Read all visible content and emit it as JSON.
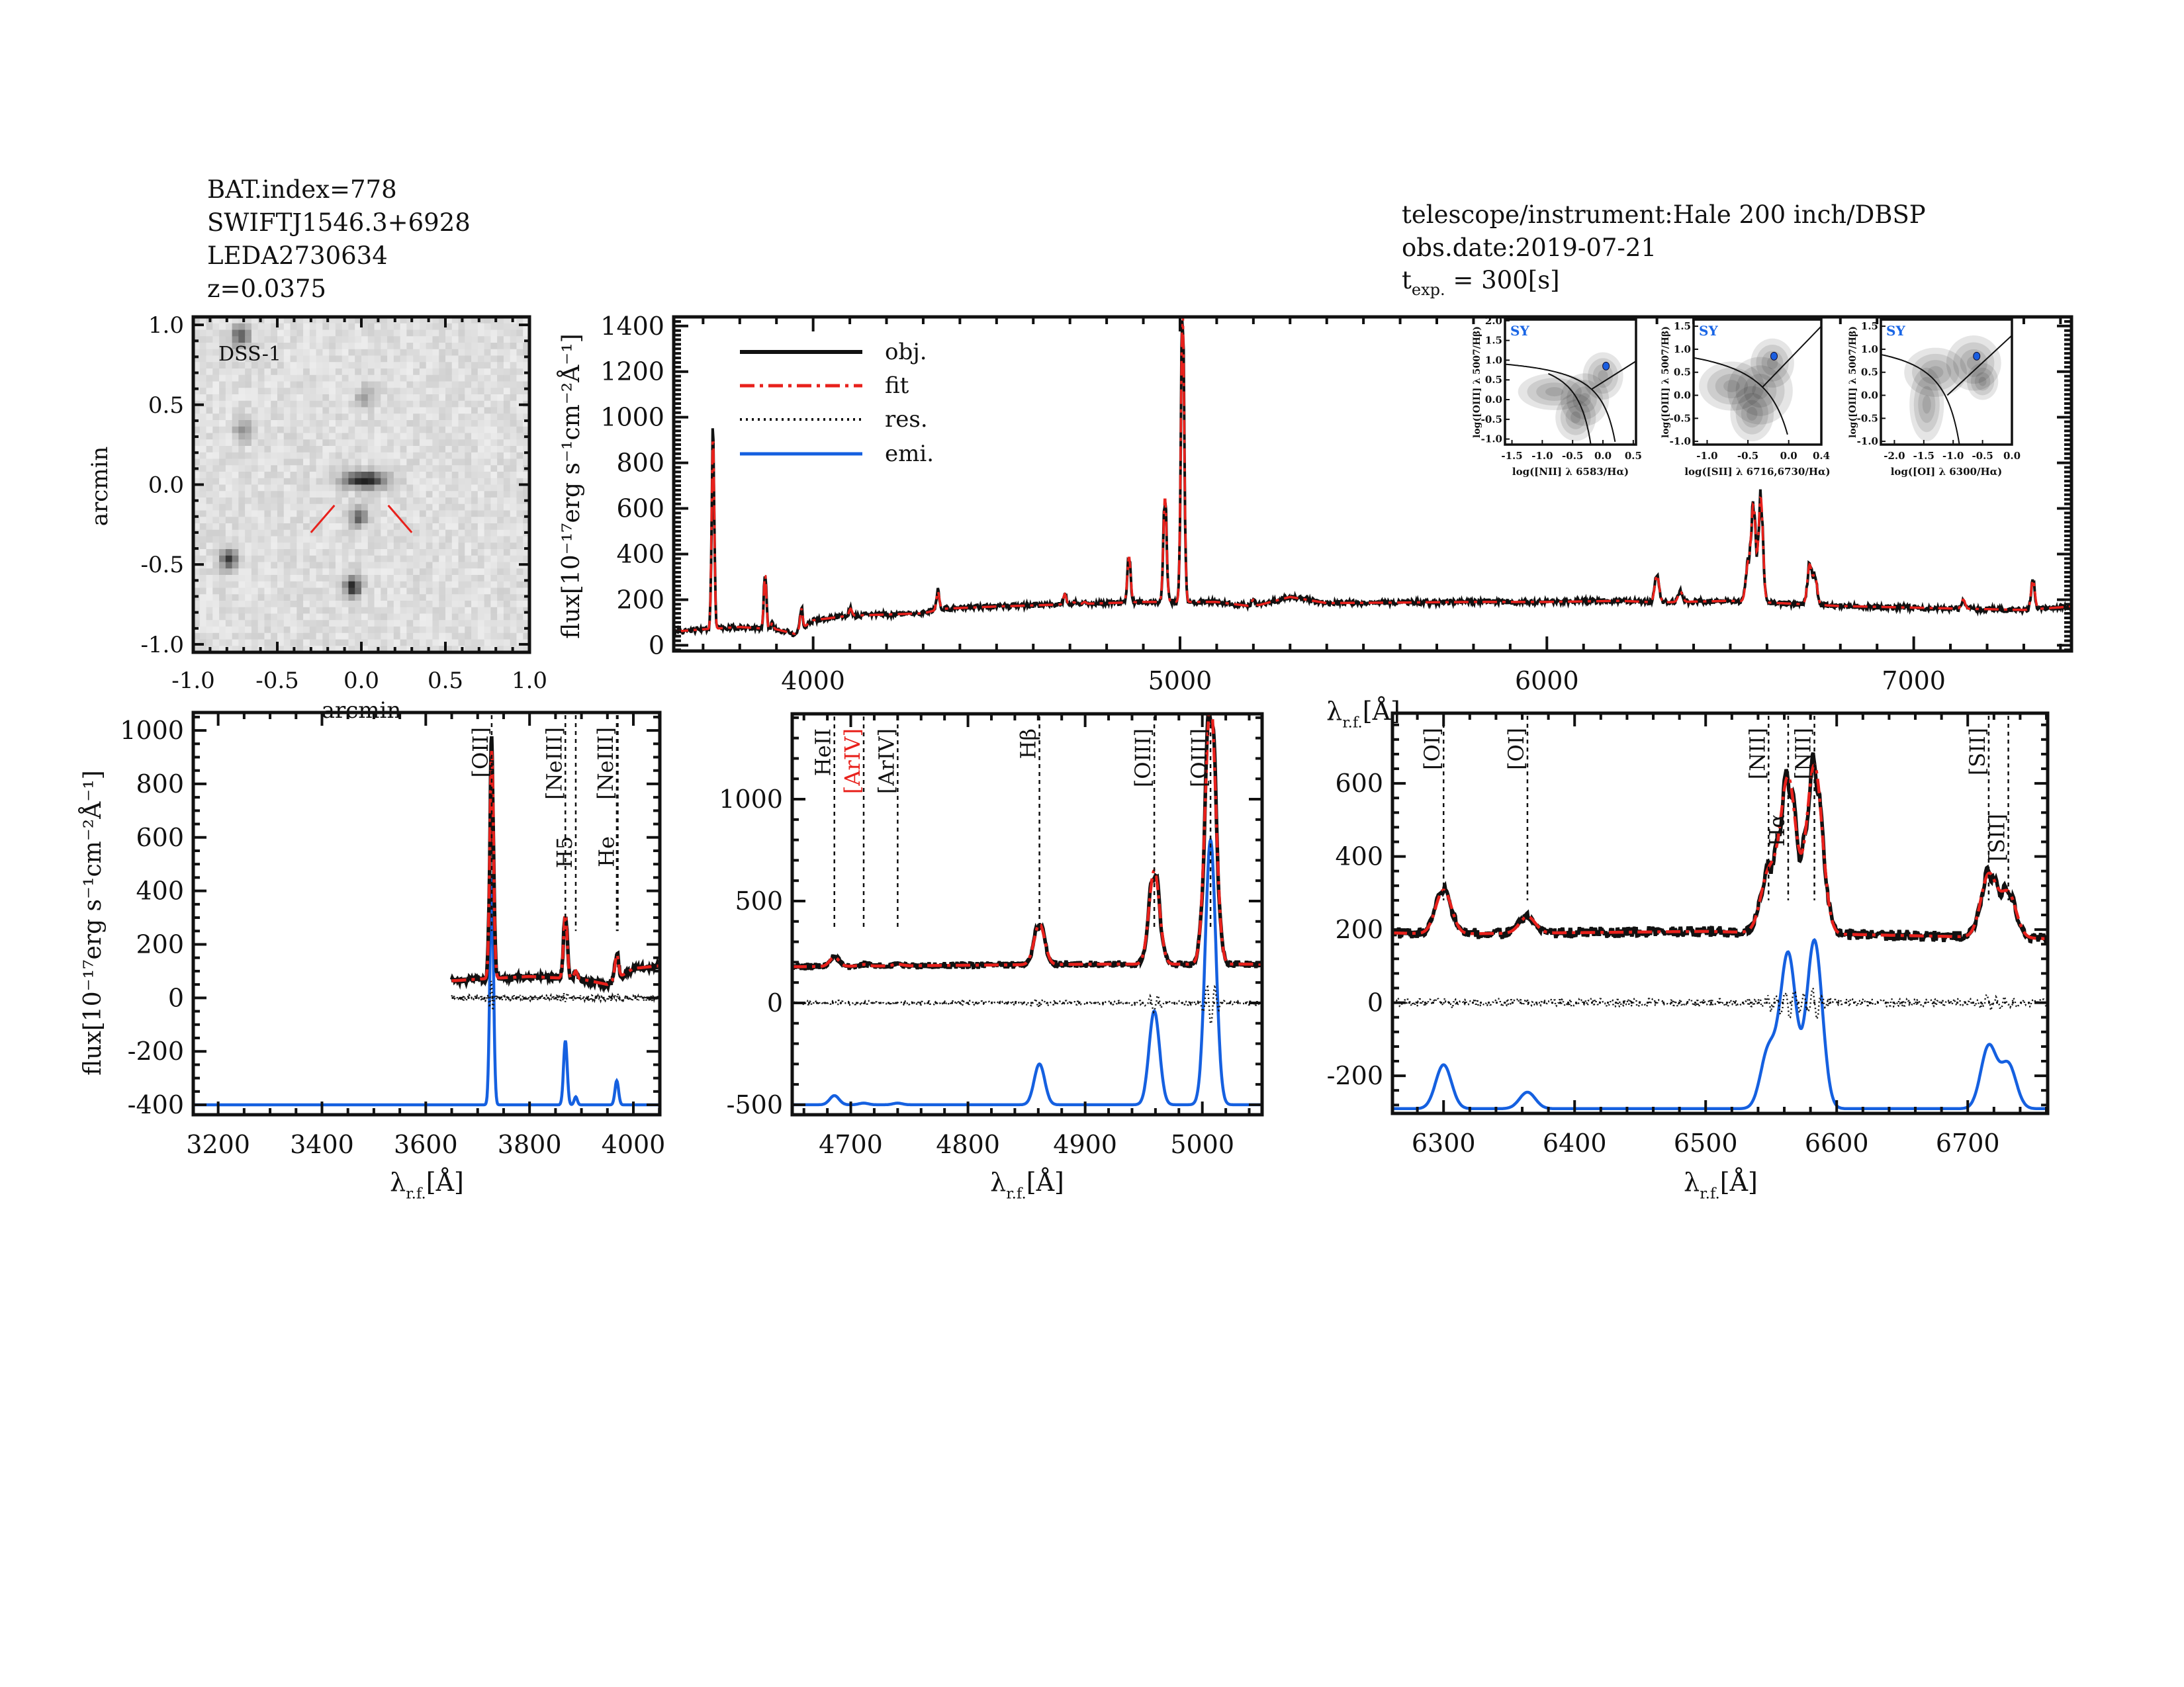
{
  "header": {
    "bat_index": "BAT.index=778",
    "swift_name": "SWIFTJ1546.3+6928",
    "counterpart": "LEDA2730634",
    "redshift": "z=0.0375",
    "telescope": "telescope/instrument:Hale 200 inch/DBSP",
    "obs_date": "obs.date:2019-07-21",
    "texp_symbol": "t",
    "texp_sub": "exp.",
    "texp_value": "= 300[s]"
  },
  "colors": {
    "obj": "#111111",
    "fit": "#e8211c",
    "res": "#111111",
    "emi": "#1560e0",
    "sy_label": "#1a66e6",
    "bpt_point": "#1a5ee0"
  },
  "chart_data": [
    {
      "id": "dss_image",
      "type": "image",
      "label": "DSS-1",
      "xlabel": "arcmin",
      "ylabel": "arcmin",
      "xlim": [
        -1.0,
        1.0
      ],
      "ylim": [
        -1.05,
        1.05
      ],
      "xticks": [
        "-1.0",
        "-0.5",
        "0.0",
        "0.5",
        "1.0"
      ],
      "yticks": [
        "1.0",
        "0.5",
        "0.0",
        "-0.5",
        "-1.0"
      ],
      "sources": [
        [
          0.02,
          0.03,
          1.0
        ],
        [
          -0.72,
          0.93,
          0.7
        ],
        [
          0.02,
          0.55,
          0.35
        ],
        [
          -0.7,
          0.34,
          0.45
        ],
        [
          -0.02,
          -0.2,
          0.6
        ],
        [
          -0.79,
          -0.47,
          0.8
        ],
        [
          -0.05,
          -0.64,
          0.85
        ]
      ]
    },
    {
      "id": "full_spectrum",
      "type": "line",
      "xlabel": {
        "symbol": "λ",
        "sub": "r.f.",
        "unit": "[Å]"
      },
      "ylabel": "flux[10⁻¹⁷erg s⁻¹cm⁻²Å⁻¹]",
      "xlim": [
        3620,
        7430
      ],
      "ylim": [
        -25,
        1440
      ],
      "xticks": [
        4000,
        5000,
        6000,
        7000
      ],
      "yticks": [
        0,
        200,
        400,
        600,
        800,
        1000,
        1200,
        1400
      ],
      "legend": {
        "position": "top-left",
        "entries": [
          "obj.",
          "fit",
          "res.",
          "emi."
        ]
      },
      "continuum": [
        [
          3620,
          60
        ],
        [
          3700,
          70
        ],
        [
          3800,
          80
        ],
        [
          3900,
          70
        ],
        [
          3950,
          50
        ],
        [
          4000,
          110
        ],
        [
          4100,
          130
        ],
        [
          4300,
          140
        ],
        [
          4350,
          160
        ],
        [
          4500,
          170
        ],
        [
          4700,
          180
        ],
        [
          4900,
          190
        ],
        [
          5100,
          190
        ],
        [
          5200,
          170
        ],
        [
          5300,
          212
        ],
        [
          5400,
          185
        ],
        [
          5800,
          190
        ],
        [
          6000,
          190
        ],
        [
          6200,
          195
        ],
        [
          6300,
          188
        ],
        [
          6500,
          195
        ],
        [
          6700,
          180
        ],
        [
          6800,
          172
        ],
        [
          7000,
          165
        ],
        [
          7300,
          155
        ],
        [
          7430,
          170
        ]
      ],
      "lines": [
        {
          "wave": 3727,
          "amp": 850,
          "sigma": 3.5
        },
        {
          "wave": 3869,
          "amp": 240,
          "sigma": 3.5
        },
        {
          "wave": 3889,
          "amp": 30,
          "sigma": 3
        },
        {
          "wave": 3968,
          "amp": 90,
          "sigma": 3.5
        },
        {
          "wave": 4102,
          "amp": 30,
          "sigma": 4
        },
        {
          "wave": 4340,
          "amp": 80,
          "sigma": 4
        },
        {
          "wave": 4686,
          "amp": 45,
          "sigma": 4
        },
        {
          "wave": 4711,
          "amp": 8,
          "sigma": 4
        },
        {
          "wave": 4740,
          "amp": 8,
          "sigma": 4
        },
        {
          "wave": 4861,
          "amp": 200,
          "sigma": 4.5
        },
        {
          "wave": 4959,
          "amp": 460,
          "sigma": 4.5
        },
        {
          "wave": 5007,
          "amp": 1300,
          "sigma": 4.5
        },
        {
          "wave": 5200,
          "amp": 30,
          "sigma": 5
        },
        {
          "wave": 6300,
          "amp": 120,
          "sigma": 6
        },
        {
          "wave": 6364,
          "amp": 45,
          "sigma": 6
        },
        {
          "wave": 6548,
          "amp": 160,
          "sigma": 6
        },
        {
          "wave": 6563,
          "amp": 420,
          "sigma": 6
        },
        {
          "wave": 6583,
          "amp": 460,
          "sigma": 6
        },
        {
          "wave": 6716,
          "amp": 170,
          "sigma": 6
        },
        {
          "wave": 6731,
          "amp": 120,
          "sigma": 6
        },
        {
          "wave": 7135,
          "amp": 40,
          "sigma": 5
        },
        {
          "wave": 7325,
          "amp": 130,
          "sigma": 5
        }
      ]
    },
    {
      "id": "zoom_oii",
      "type": "line",
      "xlabel": {
        "symbol": "λ",
        "sub": "r.f.",
        "unit": "[Å]"
      },
      "ylabel": "flux[10⁻¹⁷erg s⁻¹cm⁻²Å⁻¹]",
      "xlim": [
        3152,
        4051
      ],
      "ylim": [
        -437,
        1067
      ],
      "data_start": 3650,
      "emi_offset": -400,
      "xticks": [
        3200,
        3400,
        3600,
        3800,
        4000
      ],
      "yticks": [
        -400,
        -200,
        0,
        200,
        400,
        600,
        800,
        1000
      ],
      "line_labels": [
        {
          "text": "[OII]",
          "wave": 3727,
          "color": "#111111"
        },
        {
          "text": "[NeIII]",
          "wave": 3869,
          "color": "#111111"
        },
        {
          "text": "H5",
          "wave": 3889,
          "color": "#111111"
        },
        {
          "text": "[NeIII]",
          "wave": 3968,
          "color": "#111111"
        },
        {
          "text": "He",
          "wave": 3970,
          "color": "#111111"
        }
      ]
    },
    {
      "id": "zoom_hb_oiii",
      "type": "line",
      "xlabel": {
        "symbol": "λ",
        "sub": "r.f.",
        "unit": "[Å]"
      },
      "xlim": [
        4650,
        5051
      ],
      "ylim": [
        -549,
        1419
      ],
      "emi_offset": -500,
      "xticks": [
        4700,
        4800,
        4900,
        5000
      ],
      "yticks": [
        -500,
        0,
        500,
        1000
      ],
      "line_labels": [
        {
          "text": "HeII",
          "wave": 4686,
          "color": "#111111"
        },
        {
          "text": "[ArIV]",
          "wave": 4711,
          "color": "#e8211c"
        },
        {
          "text": "[ArIV]",
          "wave": 4740,
          "color": "#111111"
        },
        {
          "text": "Hβ",
          "wave": 4861,
          "color": "#111111"
        },
        {
          "text": "[OIII]",
          "wave": 4959,
          "color": "#111111"
        },
        {
          "text": "[OIII]",
          "wave": 5007,
          "color": "#111111"
        }
      ]
    },
    {
      "id": "zoom_ha_nii",
      "type": "line",
      "xlabel": {
        "symbol": "λ",
        "sub": "r.f.",
        "unit": "[Å]"
      },
      "xlim": [
        6261,
        6761
      ],
      "ylim": [
        -303,
        792
      ],
      "emi_offset": -290,
      "xticks": [
        6300,
        6400,
        6500,
        6600,
        6700
      ],
      "yticks": [
        -200,
        0,
        200,
        400,
        600
      ],
      "line_labels": [
        {
          "text": "[OI]",
          "wave": 6300,
          "color": "#111111"
        },
        {
          "text": "[OI]",
          "wave": 6364,
          "color": "#111111"
        },
        {
          "text": "[NII]",
          "wave": 6548,
          "color": "#111111"
        },
        {
          "text": "Hα",
          "wave": 6563,
          "color": "#111111"
        },
        {
          "text": "[NII]",
          "wave": 6583,
          "color": "#111111"
        },
        {
          "text": "[SII]",
          "wave": 6716,
          "color": "#111111"
        },
        {
          "text": "[SII]",
          "wave": 6731,
          "color": "#111111"
        }
      ]
    },
    {
      "id": "bpt_nii",
      "type": "scatter",
      "class_label": "SY",
      "xlabel": "log([NII] λ 6583/Hα)",
      "ylabel": "log([OIII] λ 5007/Hβ)",
      "xlim": [
        -1.615,
        0.545
      ],
      "ylim": [
        -1.14,
        2.03
      ],
      "xticks": [
        "-1.5",
        "-1.0",
        "-0.5",
        "0.0",
        "0.5"
      ],
      "yticks": [
        "-1.0",
        "-0.5",
        "0.0",
        "0.5",
        "1.0",
        "1.5",
        "2.0"
      ],
      "point": [
        0.05,
        0.85
      ]
    },
    {
      "id": "bpt_sii",
      "type": "scatter",
      "class_label": "SY",
      "xlabel": "log([SII] λ 6716,6730/Hα)",
      "ylabel": "log([OIII] λ 5007/Hβ)",
      "xlim": [
        -1.166,
        0.4
      ],
      "ylim": [
        -1.07,
        1.645
      ],
      "xticks": [
        "-1.0",
        "-0.5",
        "0.0",
        "0.4"
      ],
      "yticks": [
        "-1.0",
        "-0.5",
        "0.0",
        "0.5",
        "1.0",
        "1.5"
      ],
      "point": [
        -0.18,
        0.85
      ]
    },
    {
      "id": "bpt_oi",
      "type": "scatter",
      "class_label": "SY",
      "xlabel": "log([OI] λ 6300/Hα)",
      "ylabel": "log([OIII] λ 5007/Hβ)",
      "xlim": [
        -2.23,
        0.0
      ],
      "ylim": [
        -1.07,
        1.645
      ],
      "xticks": [
        "-2.0",
        "-1.5",
        "-1.0",
        "-0.5",
        "0.0"
      ],
      "yticks": [
        "-1.0",
        "-0.5",
        "0.0",
        "0.5",
        "1.0",
        "1.5"
      ],
      "point": [
        -0.6,
        0.85
      ]
    }
  ]
}
